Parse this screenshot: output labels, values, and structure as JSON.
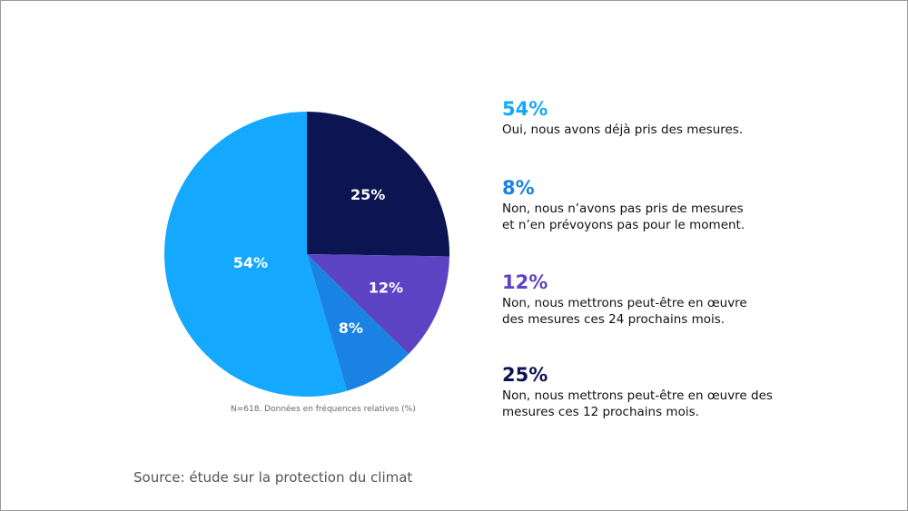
{
  "chart_data": {
    "type": "pie",
    "start": "top",
    "direction": "clockwise",
    "slices": [
      {
        "label": "Non, nous mettrons peut-être en œuvre des mesures ces 12 prochains mois.",
        "value": 25,
        "display": "25%",
        "color": "#0c1551"
      },
      {
        "label": "Non, nous mettrons peut-être en œuvre des mesures ces 24 prochains mois.",
        "value": 12,
        "display": "12%",
        "color": "#5c43c4"
      },
      {
        "label": "Non, nous n’avons pas pris de mesures et n’en prévoyons pas pour le moment.",
        "value": 8,
        "display": "8%",
        "color": "#1a82e2"
      },
      {
        "label": "Oui, nous avons déjà pris des mesures.",
        "value": 54,
        "display": "54%",
        "color": "#14a8ff"
      }
    ],
    "note": "N=618. Données en fréquences relatives (%)"
  },
  "legend": [
    {
      "value": "54%",
      "text": "Oui, nous avons déjà pris des mesures.",
      "color": "#14a8ff"
    },
    {
      "value": "8%",
      "text": "Non, nous n’avons pas pris de mesures\net n’en prévoyons pas pour le moment.",
      "color": "#1a82e2"
    },
    {
      "value": "12%",
      "text": "Non, nous mettrons peut-être en œuvre\ndes mesures ces 24 prochains mois.",
      "color": "#5c43c4"
    },
    {
      "value": "25%",
      "text": "Non, nous mettrons peut-être en œuvre des\nmesures ces 12 prochains mois.",
      "color": "#0c1551"
    }
  ],
  "source": "Source: étude sur la protection du climat"
}
